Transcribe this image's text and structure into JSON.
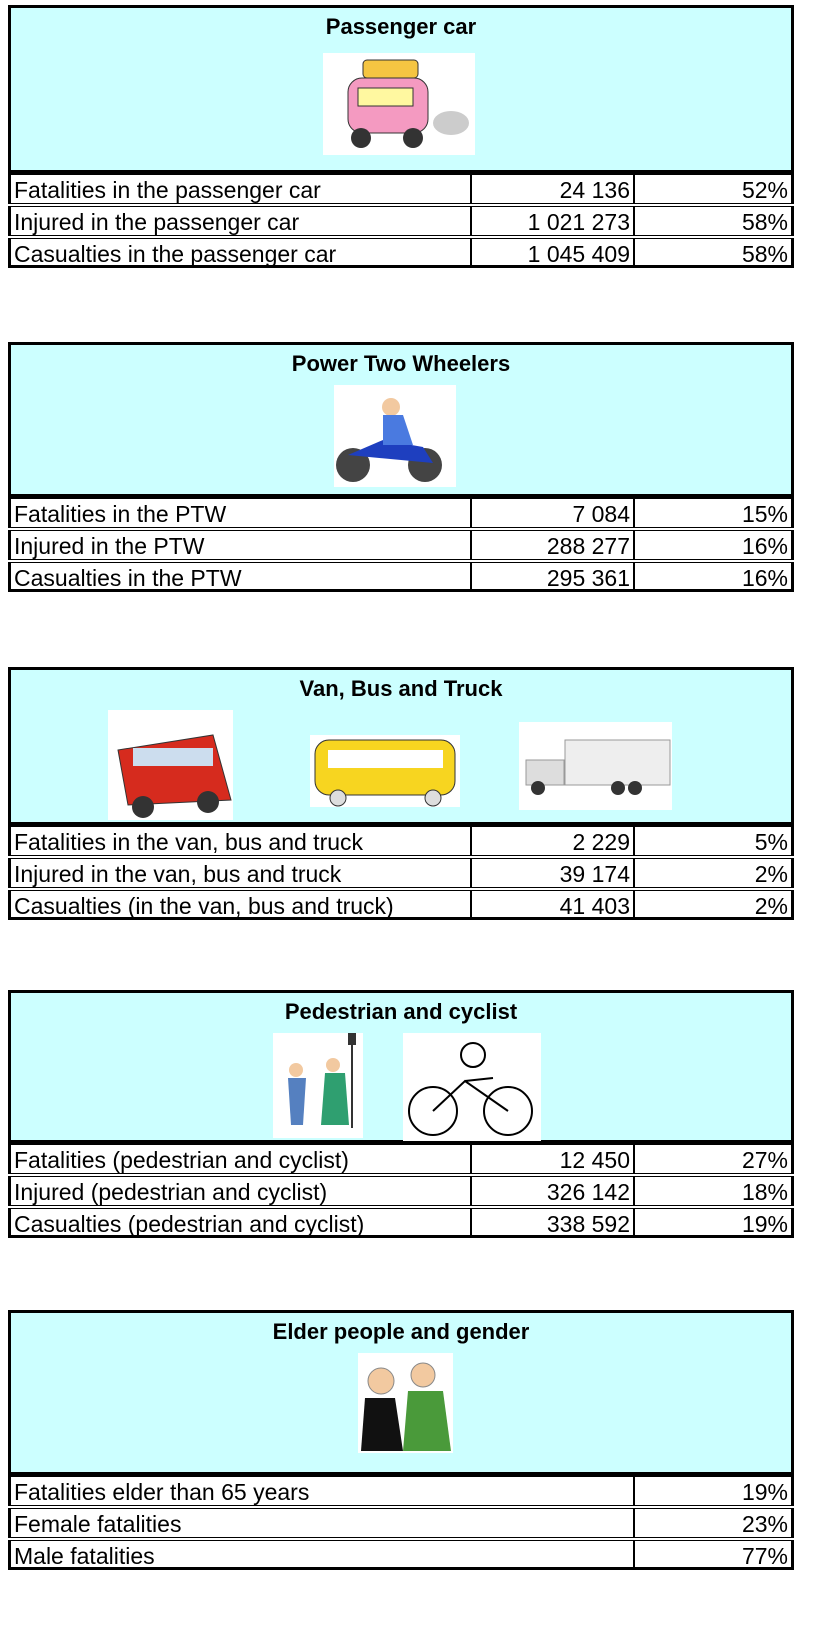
{
  "sections": [
    {
      "title": "Passenger car",
      "rows": [
        {
          "label": "Fatalities in the passenger car",
          "count": "24 136",
          "percent": "52%"
        },
        {
          "label": "Injured in the passenger car",
          "count": "1 021 273",
          "percent": "58%"
        },
        {
          "label": "Casualties in the passenger car",
          "count": "1 045 409",
          "percent": "58%"
        }
      ]
    },
    {
      "title": "Power Two Wheelers",
      "rows": [
        {
          "label": "Fatalities in the PTW",
          "count": "7 084",
          "percent": "15%"
        },
        {
          "label": "Injured in the PTW",
          "count": "288 277",
          "percent": "16%"
        },
        {
          "label": "Casualties in the PTW",
          "count": "295 361",
          "percent": "16%"
        }
      ]
    },
    {
      "title": "Van, Bus and Truck",
      "rows": [
        {
          "label": "Fatalities in the van, bus and truck",
          "count": "2 229",
          "percent": "5%"
        },
        {
          "label": "Injured in the van, bus and truck",
          "count": "39 174",
          "percent": "2%"
        },
        {
          "label": "Casualties (in the van, bus and truck)",
          "count": "41 403",
          "percent": "2%"
        }
      ]
    },
    {
      "title": "Pedestrian and cyclist",
      "rows": [
        {
          "label": "Fatalities (pedestrian and cyclist)",
          "count": "12 450",
          "percent": "27%"
        },
        {
          "label": "Injured (pedestrian and cyclist)",
          "count": "326 142",
          "percent": "18%"
        },
        {
          "label": "Casualties (pedestrian and cyclist)",
          "count": "338 592",
          "percent": "19%"
        }
      ]
    },
    {
      "title": "Elder people and gender",
      "rows": [
        {
          "label": "Fatalities elder than 65 years",
          "percent": "19%"
        },
        {
          "label": "Female fatalities",
          "percent": "23%"
        },
        {
          "label": "Male fatalities",
          "percent": "77%"
        }
      ]
    }
  ]
}
